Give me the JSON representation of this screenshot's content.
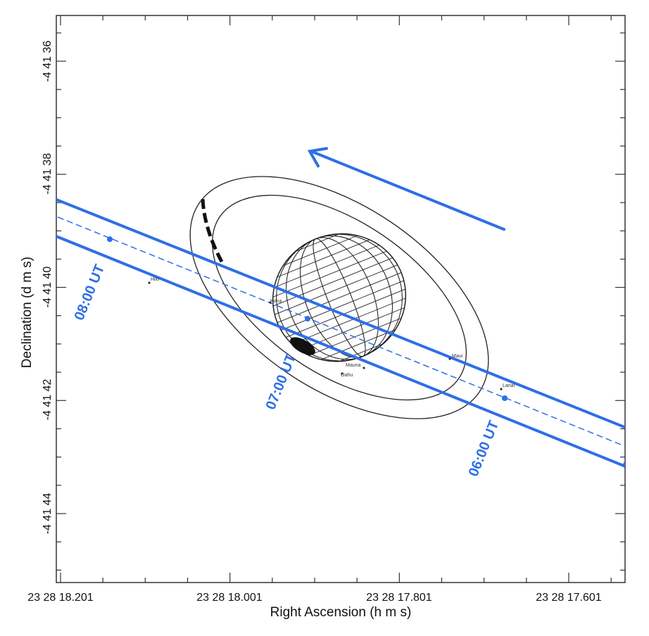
{
  "chart_data": {
    "type": "scatter",
    "xlabel": "Right Ascension (h m s)",
    "ylabel": "Declination (d m s)",
    "x_ticks": [
      "23 28 18.201",
      "23 28 18.001",
      "23 28 17.801",
      "23 28 17.601"
    ],
    "y_ticks": [
      "-4 41 36",
      "-4 41 38",
      "-4 41 40",
      "-4 41 42",
      "-4 41 44"
    ],
    "time_labels": [
      "08:00 UT",
      "07:00 UT",
      "06:00 UT"
    ],
    "station_labels": [
      "Hilo",
      "Kona",
      "Mauna",
      "Maui",
      "Lanai",
      "Oahu"
    ],
    "colors": {
      "path": "#2f6fe6",
      "planet": "#222222",
      "axes": "#333333"
    }
  }
}
